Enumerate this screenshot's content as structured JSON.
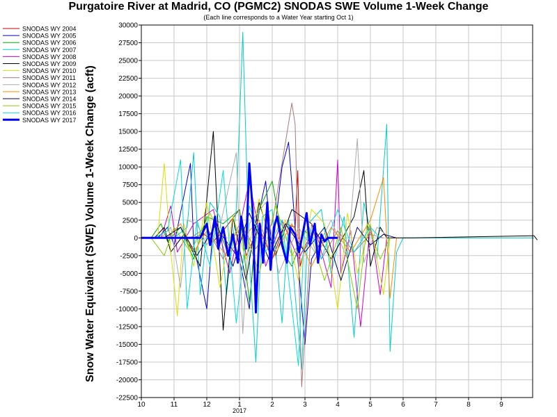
{
  "chart_data": {
    "type": "line",
    "title": "Purgatoire River at Madrid, CO (PGMC2) SNODAS SWE Volume 1-Week Change",
    "subtitle": "(Each line corresponds to a Water Year starting Oct 1)",
    "ylabel": "Snow Water Equivalent (SWE) Volume 1-Week Change (acft)",
    "xlabel": "",
    "ylim": [
      -22500,
      30000
    ],
    "y_ticks": [
      30000,
      27500,
      25000,
      22500,
      20000,
      17500,
      15000,
      12500,
      10000,
      7500,
      5000,
      2500,
      0,
      -2500,
      -5000,
      -7500,
      -10000,
      -12500,
      -15000,
      -17500,
      -20000,
      -22500
    ],
    "x_ticks": [
      "10",
      "11",
      "12",
      "1",
      "2",
      "3",
      "4",
      "5",
      "6",
      "7",
      "8",
      "9"
    ],
    "x_year_label": "2017",
    "x_units": "month of water year (Oct 1 = 10)",
    "grid": true,
    "legend_position": "left",
    "series": [
      {
        "name": "SNODAS WY 2004",
        "color": "#cc0000",
        "points": [
          [
            1.6,
            0
          ],
          [
            1.9,
            600
          ],
          [
            2.2,
            -500
          ],
          [
            2.5,
            1000
          ],
          [
            3.0,
            4000
          ],
          [
            3.2,
            -2500
          ],
          [
            3.6,
            1500
          ],
          [
            4.0,
            -3000
          ],
          [
            4.4,
            2000
          ],
          [
            4.7,
            1500
          ],
          [
            4.78,
            9500
          ],
          [
            4.85,
            -4000
          ],
          [
            5.0,
            -1500
          ],
          [
            5.2,
            0
          ]
        ]
      },
      {
        "name": "SNODAS WY 2005",
        "color": "#0000cc",
        "points": [
          [
            0.5,
            0
          ],
          [
            0.8,
            1500
          ],
          [
            1.0,
            -1000
          ],
          [
            1.5,
            10500
          ],
          [
            1.6,
            -1000
          ],
          [
            2.0,
            -10000
          ],
          [
            2.2,
            2000
          ],
          [
            3.0,
            -3000
          ],
          [
            3.3,
            -10000
          ],
          [
            3.5,
            1500
          ],
          [
            3.8,
            8000
          ],
          [
            4.0,
            -2000
          ],
          [
            4.3,
            10000
          ],
          [
            4.5,
            13500
          ],
          [
            4.7,
            1500
          ],
          [
            5.0,
            -15000
          ],
          [
            5.2,
            -3000
          ],
          [
            5.5,
            -500
          ],
          [
            5.7,
            0
          ]
        ]
      },
      {
        "name": "SNODAS WY 2006",
        "color": "#00aa00",
        "points": [
          [
            0.3,
            0
          ],
          [
            0.6,
            2000
          ],
          [
            0.8,
            -500
          ],
          [
            1.2,
            1500
          ],
          [
            1.6,
            -3000
          ],
          [
            2.0,
            3000
          ],
          [
            2.5,
            2000
          ],
          [
            3.0,
            4000
          ],
          [
            3.3,
            -9000
          ],
          [
            3.6,
            4000
          ],
          [
            4.0,
            8000
          ],
          [
            4.4,
            -2500
          ],
          [
            4.6,
            -4000
          ],
          [
            5.0,
            1000
          ],
          [
            5.2,
            0
          ]
        ]
      },
      {
        "name": "SNODAS WY 2007",
        "color": "#00cccc",
        "points": [
          [
            1.0,
            0
          ],
          [
            1.4,
            1500
          ],
          [
            1.6,
            12000
          ],
          [
            1.8,
            -8000
          ],
          [
            2.1,
            5000
          ],
          [
            2.4,
            3000
          ],
          [
            2.6,
            -8000
          ],
          [
            2.9,
            4000
          ],
          [
            3.1,
            29000
          ],
          [
            3.3,
            -3000
          ],
          [
            3.5,
            -17500
          ],
          [
            3.7,
            3000
          ],
          [
            4.0,
            4000
          ],
          [
            4.3,
            -12000
          ],
          [
            4.5,
            2500
          ],
          [
            4.9,
            -18500
          ],
          [
            5.1,
            2000
          ],
          [
            5.5,
            4000
          ],
          [
            5.8,
            -5000
          ],
          [
            6.2,
            3000
          ],
          [
            6.5,
            -14000
          ],
          [
            6.8,
            5000
          ],
          [
            7.2,
            -3000
          ],
          [
            7.5,
            16000
          ],
          [
            7.6,
            -16000
          ],
          [
            7.8,
            -2000
          ],
          [
            8.0,
            0
          ],
          [
            12.0,
            0
          ]
        ]
      },
      {
        "name": "SNODAS WY 2008",
        "color": "#cc00cc",
        "points": [
          [
            0.6,
            0
          ],
          [
            0.9,
            4500
          ],
          [
            1.1,
            -2000
          ],
          [
            1.6,
            2000
          ],
          [
            2.2,
            4000
          ],
          [
            2.7,
            -5000
          ],
          [
            3.3,
            8000
          ],
          [
            3.8,
            -4000
          ],
          [
            4.3,
            2500
          ],
          [
            4.8,
            -3000
          ],
          [
            5.3,
            1500
          ],
          [
            5.8,
            -7000
          ],
          [
            6.0,
            11000
          ],
          [
            6.1,
            -5000
          ],
          [
            6.4,
            1000
          ],
          [
            6.7,
            -12500
          ],
          [
            7.0,
            2000
          ],
          [
            7.3,
            -8000
          ],
          [
            7.5,
            0
          ]
        ]
      },
      {
        "name": "SNODAS WY 2009",
        "color": "#000000",
        "points": [
          [
            0.4,
            0
          ],
          [
            0.7,
            1500
          ],
          [
            0.9,
            -2000
          ],
          [
            1.3,
            500
          ],
          [
            1.8,
            -4000
          ],
          [
            2.2,
            15000
          ],
          [
            2.5,
            -13000
          ],
          [
            2.8,
            3000
          ],
          [
            3.2,
            -6000
          ],
          [
            3.6,
            5000
          ],
          [
            4.1,
            -2500
          ],
          [
            4.6,
            4000
          ],
          [
            5.2,
            2000
          ],
          [
            5.8,
            -3000
          ],
          [
            6.5,
            3000
          ],
          [
            6.8,
            9500
          ],
          [
            7.0,
            -4000
          ],
          [
            7.3,
            1500
          ],
          [
            7.5,
            0
          ],
          [
            8.3,
            0
          ],
          [
            12.0,
            300
          ],
          [
            12.1,
            -300
          ]
        ]
      },
      {
        "name": "SNODAS WY 2010",
        "color": "#dddd00",
        "points": [
          [
            0.5,
            0
          ],
          [
            0.7,
            10500
          ],
          [
            0.9,
            -2000
          ],
          [
            1.1,
            -11000
          ],
          [
            1.3,
            2000
          ],
          [
            1.6,
            -4000
          ],
          [
            2.0,
            5000
          ],
          [
            2.4,
            -7000
          ],
          [
            2.8,
            3000
          ],
          [
            3.2,
            -3000
          ],
          [
            3.6,
            5500
          ],
          [
            4.0,
            -2000
          ],
          [
            4.4,
            2500
          ],
          [
            4.8,
            -6000
          ],
          [
            5.2,
            4000
          ],
          [
            5.6,
            2000
          ],
          [
            6.0,
            -10000
          ],
          [
            6.3,
            3500
          ],
          [
            6.6,
            -5000
          ],
          [
            7.0,
            2000
          ],
          [
            7.4,
            -8000
          ],
          [
            7.6,
            0
          ]
        ]
      },
      {
        "name": "SNODAS WY 2011",
        "color": "#aa7777",
        "points": [
          [
            1.5,
            0
          ],
          [
            2.0,
            1500
          ],
          [
            2.5,
            -3000
          ],
          [
            3.0,
            2000
          ],
          [
            3.5,
            -1500
          ],
          [
            4.0,
            2000
          ],
          [
            4.6,
            19000
          ],
          [
            4.7,
            16000
          ],
          [
            4.9,
            -21000
          ],
          [
            5.2,
            2000
          ],
          [
            5.5,
            -3000
          ],
          [
            6.0,
            1000
          ],
          [
            6.5,
            -2000
          ],
          [
            7.0,
            500
          ],
          [
            7.4,
            0
          ]
        ]
      },
      {
        "name": "SNODAS WY 2012",
        "color": "#aaaaaa",
        "points": [
          [
            0.6,
            0
          ],
          [
            0.9,
            1500
          ],
          [
            1.2,
            -7000
          ],
          [
            1.4,
            2500
          ],
          [
            1.7,
            2000
          ],
          [
            2.0,
            -1000
          ],
          [
            2.4,
            1500
          ],
          [
            2.9,
            12000
          ],
          [
            3.1,
            -13500
          ],
          [
            3.3,
            2000
          ],
          [
            3.8,
            5000
          ],
          [
            4.2,
            -5000
          ],
          [
            4.8,
            1500
          ],
          [
            5.3,
            -2000
          ],
          [
            5.8,
            2500
          ],
          [
            6.3,
            -3000
          ],
          [
            6.6,
            14000
          ],
          [
            6.8,
            -3500
          ],
          [
            7.2,
            1500
          ],
          [
            7.6,
            0
          ]
        ]
      },
      {
        "name": "SNODAS WY 2013",
        "color": "#ff8800",
        "points": [
          [
            0.8,
            0
          ],
          [
            1.2,
            2000
          ],
          [
            1.6,
            -2000
          ],
          [
            2.0,
            1000
          ],
          [
            2.6,
            -2500
          ],
          [
            3.2,
            500
          ],
          [
            3.6,
            2500
          ],
          [
            4.0,
            -3000
          ],
          [
            4.6,
            2000
          ],
          [
            5.2,
            -4000
          ],
          [
            5.8,
            1500
          ],
          [
            6.4,
            -2000
          ],
          [
            7.0,
            2500
          ],
          [
            7.4,
            8500
          ],
          [
            7.6,
            -8500
          ],
          [
            7.8,
            0
          ]
        ]
      },
      {
        "name": "SNODAS WY 2014",
        "color": "#000066",
        "points": [
          [
            0.7,
            0
          ],
          [
            1.2,
            1500
          ],
          [
            1.7,
            -2500
          ],
          [
            2.3,
            2000
          ],
          [
            2.8,
            -4000
          ],
          [
            3.3,
            3500
          ],
          [
            3.9,
            -3000
          ],
          [
            4.4,
            2000
          ],
          [
            5.0,
            -2000
          ],
          [
            5.6,
            1500
          ],
          [
            6.1,
            -6000
          ],
          [
            6.6,
            1500
          ],
          [
            7.0,
            -1000
          ],
          [
            7.4,
            500
          ],
          [
            7.8,
            0
          ]
        ]
      },
      {
        "name": "SNODAS WY 2015",
        "color": "#88cc00",
        "points": [
          [
            0.3,
            0
          ],
          [
            0.7,
            -2500
          ],
          [
            1.0,
            1500
          ],
          [
            1.5,
            -2000
          ],
          [
            2.1,
            3500
          ],
          [
            2.6,
            -1500
          ],
          [
            3.1,
            2000
          ],
          [
            3.6,
            -5000
          ],
          [
            4.1,
            4500
          ],
          [
            4.6,
            -2500
          ],
          [
            5.1,
            1500
          ],
          [
            5.6,
            -6000
          ],
          [
            6.1,
            1500
          ],
          [
            6.6,
            -10000
          ],
          [
            6.9,
            2000
          ],
          [
            7.3,
            -3000
          ],
          [
            7.6,
            0
          ]
        ]
      },
      {
        "name": "SNODAS WY 2016",
        "color": "#00dddd",
        "points": [
          [
            0.4,
            0
          ],
          [
            0.8,
            1000
          ],
          [
            1.2,
            11000
          ],
          [
            1.4,
            -10000
          ],
          [
            1.7,
            2500
          ],
          [
            2.1,
            -4000
          ],
          [
            2.5,
            9500
          ],
          [
            2.9,
            -12000
          ],
          [
            3.3,
            4500
          ],
          [
            3.8,
            -2000
          ],
          [
            4.3,
            2500
          ],
          [
            4.8,
            -18000
          ],
          [
            5.0,
            3000
          ],
          [
            5.5,
            -3000
          ],
          [
            6.0,
            4000
          ],
          [
            6.5,
            -2000
          ],
          [
            7.0,
            1500
          ],
          [
            7.3,
            0
          ]
        ]
      },
      {
        "name": "SNODAS WY 2017",
        "color": "#0000ff",
        "thick": true,
        "points": [
          [
            0.0,
            0
          ],
          [
            1.8,
            0
          ],
          [
            2.0,
            2000
          ],
          [
            2.1,
            -1000
          ],
          [
            2.25,
            3000
          ],
          [
            2.35,
            -1500
          ],
          [
            2.5,
            1500
          ],
          [
            2.65,
            -2500
          ],
          [
            2.8,
            500
          ],
          [
            2.95,
            -3500
          ],
          [
            3.05,
            3000
          ],
          [
            3.2,
            -1500
          ],
          [
            3.3,
            10500
          ],
          [
            3.4,
            4000
          ],
          [
            3.5,
            -10500
          ],
          [
            3.62,
            2000
          ],
          [
            3.72,
            -3500
          ],
          [
            3.85,
            5000
          ],
          [
            3.95,
            -4500
          ],
          [
            4.05,
            1500
          ],
          [
            4.15,
            3000
          ],
          [
            4.3,
            -1000
          ],
          [
            4.45,
            -3500
          ],
          [
            4.55,
            1500
          ],
          [
            4.7,
            500
          ],
          [
            4.82,
            -2000
          ],
          [
            4.95,
            1000
          ],
          [
            5.05,
            3500
          ],
          [
            5.15,
            -1000
          ],
          [
            5.3,
            2000
          ],
          [
            5.4,
            -3500
          ],
          [
            5.5,
            500
          ],
          [
            5.6,
            -500
          ],
          [
            5.7,
            0
          ],
          [
            6.0,
            0
          ]
        ]
      }
    ]
  }
}
